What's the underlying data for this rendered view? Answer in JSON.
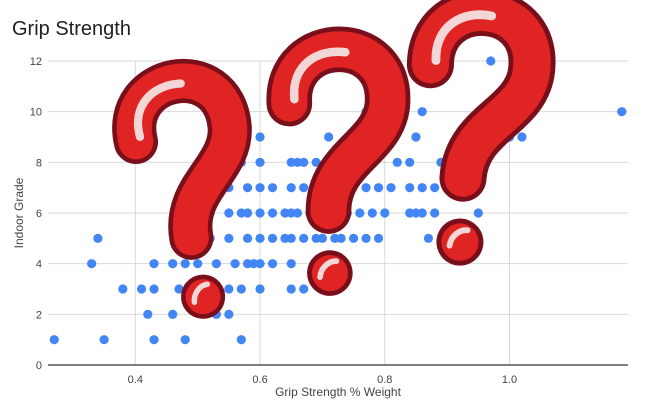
{
  "colors": {
    "point": "#4285F4",
    "grid": "#d9d9d9",
    "axis_text": "#444444",
    "mark_fill": "#e02424",
    "mark_edge": "#7a0f1c",
    "mark_highlight": "#f3d6d6"
  },
  "overlay": {
    "icons": [
      "question-mark-icon",
      "question-mark-icon",
      "question-mark-icon"
    ]
  },
  "chart_data": {
    "type": "scatter",
    "title": "Grip Strength",
    "xlabel": "Grip Strength % Weight",
    "ylabel": "Indoor Grade",
    "xlim": [
      0.26,
      1.19
    ],
    "ylim": [
      0,
      12
    ],
    "xticks": [
      0.4,
      0.6,
      0.8,
      1.0
    ],
    "xtick_labels": [
      "0.4",
      "0.6",
      "0.8",
      "1.0"
    ],
    "yticks": [
      0,
      2,
      4,
      6,
      8,
      10,
      12
    ],
    "ytick_labels": [
      "0",
      "2",
      "4",
      "6",
      "8",
      "10",
      "12"
    ],
    "grid": true,
    "legend": "none",
    "points": [
      [
        0.27,
        1
      ],
      [
        0.35,
        1
      ],
      [
        0.43,
        1
      ],
      [
        0.48,
        1
      ],
      [
        0.57,
        1
      ],
      [
        0.42,
        2
      ],
      [
        0.46,
        2
      ],
      [
        0.53,
        2
      ],
      [
        0.55,
        2
      ],
      [
        0.38,
        3
      ],
      [
        0.41,
        3
      ],
      [
        0.43,
        3
      ],
      [
        0.47,
        3
      ],
      [
        0.49,
        3
      ],
      [
        0.51,
        3
      ],
      [
        0.53,
        3
      ],
      [
        0.55,
        3
      ],
      [
        0.57,
        3
      ],
      [
        0.6,
        3
      ],
      [
        0.65,
        3
      ],
      [
        0.67,
        3
      ],
      [
        0.7,
        3
      ],
      [
        0.33,
        4
      ],
      [
        0.43,
        4
      ],
      [
        0.46,
        4
      ],
      [
        0.48,
        4
      ],
      [
        0.5,
        4
      ],
      [
        0.53,
        4
      ],
      [
        0.56,
        4
      ],
      [
        0.58,
        4
      ],
      [
        0.59,
        4
      ],
      [
        0.6,
        4
      ],
      [
        0.62,
        4
      ],
      [
        0.65,
        4
      ],
      [
        0.7,
        4
      ],
      [
        0.72,
        4
      ],
      [
        0.34,
        5
      ],
      [
        0.47,
        5
      ],
      [
        0.52,
        5
      ],
      [
        0.55,
        5
      ],
      [
        0.58,
        5
      ],
      [
        0.6,
        5
      ],
      [
        0.62,
        5
      ],
      [
        0.64,
        5
      ],
      [
        0.65,
        5
      ],
      [
        0.67,
        5
      ],
      [
        0.69,
        5
      ],
      [
        0.7,
        5
      ],
      [
        0.72,
        5
      ],
      [
        0.73,
        5
      ],
      [
        0.75,
        5
      ],
      [
        0.77,
        5
      ],
      [
        0.79,
        5
      ],
      [
        0.87,
        5
      ],
      [
        0.52,
        6
      ],
      [
        0.55,
        6
      ],
      [
        0.57,
        6
      ],
      [
        0.58,
        6
      ],
      [
        0.6,
        6
      ],
      [
        0.62,
        6
      ],
      [
        0.64,
        6
      ],
      [
        0.65,
        6
      ],
      [
        0.66,
        6
      ],
      [
        0.68,
        6
      ],
      [
        0.7,
        6
      ],
      [
        0.72,
        6
      ],
      [
        0.74,
        6
      ],
      [
        0.76,
        6
      ],
      [
        0.78,
        6
      ],
      [
        0.8,
        6
      ],
      [
        0.84,
        6
      ],
      [
        0.85,
        6
      ],
      [
        0.86,
        6
      ],
      [
        0.88,
        6
      ],
      [
        0.95,
        6
      ],
      [
        0.55,
        7
      ],
      [
        0.58,
        7
      ],
      [
        0.6,
        7
      ],
      [
        0.62,
        7
      ],
      [
        0.65,
        7
      ],
      [
        0.67,
        7
      ],
      [
        0.69,
        7
      ],
      [
        0.72,
        7
      ],
      [
        0.74,
        7
      ],
      [
        0.77,
        7
      ],
      [
        0.79,
        7
      ],
      [
        0.81,
        7
      ],
      [
        0.84,
        7
      ],
      [
        0.86,
        7
      ],
      [
        0.88,
        7
      ],
      [
        0.9,
        7
      ],
      [
        0.57,
        8
      ],
      [
        0.6,
        8
      ],
      [
        0.65,
        8
      ],
      [
        0.66,
        8
      ],
      [
        0.67,
        8
      ],
      [
        0.69,
        8
      ],
      [
        0.74,
        8
      ],
      [
        0.77,
        8
      ],
      [
        0.82,
        8
      ],
      [
        0.84,
        8
      ],
      [
        0.89,
        8
      ],
      [
        0.9,
        8
      ],
      [
        0.95,
        8
      ],
      [
        0.6,
        9
      ],
      [
        0.71,
        9
      ],
      [
        0.75,
        9
      ],
      [
        0.8,
        9
      ],
      [
        0.85,
        9
      ],
      [
        0.95,
        9
      ],
      [
        0.99,
        9
      ],
      [
        1.0,
        9
      ],
      [
        1.02,
        9
      ],
      [
        0.77,
        10
      ],
      [
        0.86,
        10
      ],
      [
        1.18,
        10
      ],
      [
        0.97,
        12
      ]
    ],
    "hollow_points": [
      [
        1.02,
        10.3
      ]
    ]
  }
}
